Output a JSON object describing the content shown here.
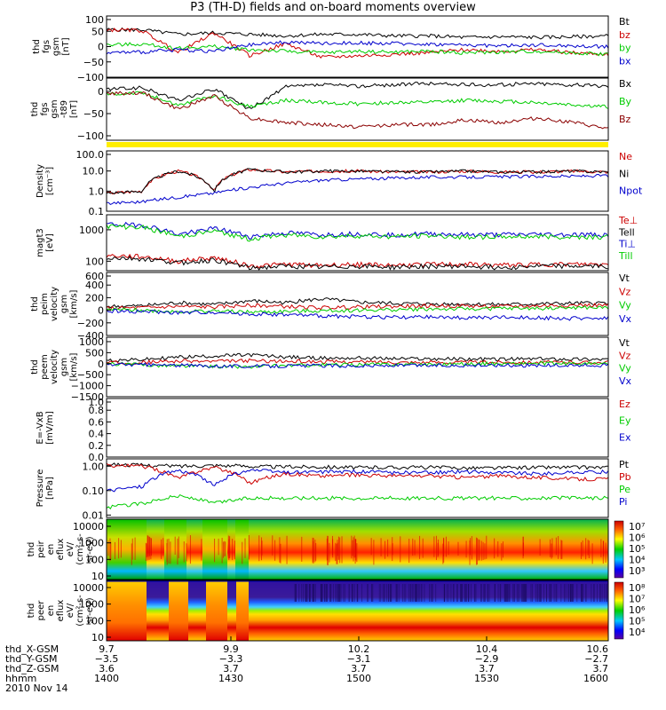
{
  "title": "P3 (TH-D) fields and on-board moments overview",
  "chart_data": [
    {
      "id": "p1",
      "type": "line",
      "ylabel": [
        "thd",
        "fgs",
        "gsm",
        "[nT]"
      ],
      "ticks": [
        "100",
        "50",
        "0",
        "−50",
        "−100"
      ],
      "ylim": [
        -100,
        100
      ],
      "series": [
        {
          "name": "Bt",
          "color": "#000000",
          "values": [
            55,
            55,
            40,
            45,
            40,
            35,
            40,
            40,
            35,
            35,
            30,
            32,
            30,
            32,
            35
          ]
        },
        {
          "name": "bz",
          "color": "#cc0000",
          "values": [
            55,
            52,
            -20,
            45,
            -30,
            10,
            -35,
            -30,
            -25,
            -20,
            -10,
            -15,
            -10,
            -20,
            -25
          ]
        },
        {
          "name": "by",
          "color": "#00cc00",
          "values": [
            5,
            8,
            -5,
            0,
            -10,
            -15,
            -20,
            -15,
            -18,
            -15,
            -20,
            -18,
            -15,
            -20,
            -25
          ]
        },
        {
          "name": "bx",
          "color": "#0000cc",
          "values": [
            -20,
            -18,
            -10,
            -15,
            5,
            15,
            10,
            12,
            10,
            8,
            5,
            3,
            5,
            2,
            0
          ]
        }
      ]
    },
    {
      "id": "p2",
      "type": "line",
      "ylabel": [
        "thd",
        "fgs",
        "gsm",
        "-t89",
        "[nT]"
      ],
      "ticks": [
        "0",
        "−50",
        "−100"
      ],
      "ylim": [
        -110,
        30
      ],
      "series": [
        {
          "name": "Bx",
          "color": "#000000",
          "values": [
            5,
            8,
            -20,
            5,
            -40,
            10,
            15,
            12,
            15,
            18,
            15,
            15,
            18,
            15,
            12
          ]
        },
        {
          "name": "By",
          "color": "#00cc00",
          "values": [
            -5,
            -3,
            -30,
            -10,
            -35,
            -20,
            -25,
            -28,
            -25,
            -25,
            -20,
            -22,
            -25,
            -30,
            -35
          ]
        },
        {
          "name": "Bz",
          "color": "#8b0000",
          "values": [
            -5,
            -3,
            -40,
            -10,
            -60,
            -70,
            -75,
            -80,
            -75,
            -75,
            -65,
            -70,
            -60,
            -70,
            -85
          ]
        }
      ]
    },
    {
      "id": "p3",
      "type": "line",
      "yscale": "log",
      "ylabel": [
        "Density",
        "[cm⁻³]"
      ],
      "ticks": [
        "100.0",
        "10.0",
        "1.0",
        "0.1"
      ],
      "ylim": [
        0.1,
        100
      ],
      "series": [
        {
          "name": "Ne",
          "color": "#cc0000",
          "values": [
            0.8,
            1.0,
            10,
            0.9,
            12,
            9,
            10,
            10,
            9,
            9,
            10,
            9,
            9,
            10,
            9
          ]
        },
        {
          "name": "Ni",
          "color": "#000000",
          "values": [
            0.8,
            1.0,
            10,
            0.9,
            12,
            9,
            10,
            10,
            9,
            9,
            10,
            9,
            9,
            10,
            9
          ]
        },
        {
          "name": "Npot",
          "color": "#0000cc",
          "values": [
            0.25,
            0.3,
            0.5,
            0.8,
            1.5,
            2.5,
            3.5,
            4,
            4.5,
            5,
            5,
            5.2,
            5.5,
            5.5,
            6
          ]
        }
      ]
    },
    {
      "id": "p4",
      "type": "line",
      "yscale": "log",
      "ylabel": [
        "magt3",
        "[eV]"
      ],
      "ticks": [
        "1000",
        "100"
      ],
      "ylim": [
        50,
        3000
      ],
      "series": [
        {
          "name": "Te⊥",
          "color": "#cc0000",
          "values": [
            150,
            140,
            100,
            130,
            70,
            80,
            75,
            80,
            75,
            80,
            80,
            75,
            80,
            80,
            80
          ]
        },
        {
          "name": "Tell",
          "color": "#000000",
          "values": [
            130,
            120,
            90,
            110,
            60,
            70,
            65,
            70,
            65,
            70,
            70,
            65,
            70,
            70,
            70
          ]
        },
        {
          "name": "Ti⊥",
          "color": "#0000cc",
          "values": [
            1500,
            1400,
            700,
            1100,
            600,
            800,
            700,
            750,
            700,
            750,
            700,
            700,
            720,
            700,
            700
          ]
        },
        {
          "name": "Till",
          "color": "#00cc00",
          "values": [
            1300,
            1200,
            600,
            900,
            500,
            700,
            600,
            650,
            600,
            650,
            600,
            600,
            620,
            600,
            600
          ]
        }
      ]
    },
    {
      "id": "p5",
      "type": "line",
      "ylabel": [
        "thd",
        "peim",
        "velocity",
        "gsm",
        "[km/s]"
      ],
      "ticks": [
        "600",
        "400",
        "200",
        "0",
        "−200",
        "−400"
      ],
      "ylim": [
        -400,
        600
      ],
      "series": [
        {
          "name": "Vt",
          "color": "#000000",
          "values": [
            60,
            70,
            120,
            90,
            150,
            120,
            180,
            130,
            110,
            100,
            100,
            90,
            100,
            110,
            120
          ]
        },
        {
          "name": "Vz",
          "color": "#cc0000",
          "values": [
            30,
            40,
            60,
            50,
            80,
            60,
            40,
            50,
            60,
            70,
            70,
            60,
            70,
            80,
            80
          ]
        },
        {
          "name": "Vy",
          "color": "#00cc00",
          "values": [
            10,
            0,
            -20,
            -10,
            -30,
            -20,
            -10,
            0,
            10,
            20,
            20,
            30,
            30,
            40,
            40
          ]
        },
        {
          "name": "Vx",
          "color": "#0000cc",
          "values": [
            -10,
            -20,
            -40,
            -30,
            -60,
            -70,
            -90,
            -100,
            -110,
            -110,
            -120,
            -110,
            -120,
            -130,
            -120
          ]
        }
      ]
    },
    {
      "id": "p6",
      "type": "line",
      "ylabel": [
        "thd",
        "peem",
        "velocity",
        "gsm",
        "[km/s]"
      ],
      "ticks": [
        "1000",
        "500",
        "0",
        "−500",
        "−1000",
        "−1500"
      ],
      "ylim": [
        -1500,
        1200
      ],
      "series": [
        {
          "name": "Vt",
          "color": "#000000",
          "values": [
            150,
            180,
            300,
            350,
            400,
            300,
            250,
            260,
            230,
            220,
            210,
            200,
            220,
            210,
            200
          ]
        },
        {
          "name": "Vz",
          "color": "#cc0000",
          "values": [
            50,
            60,
            120,
            100,
            140,
            100,
            90,
            80,
            70,
            60,
            60,
            70,
            60,
            60,
            60
          ]
        },
        {
          "name": "Vy",
          "color": "#00cc00",
          "values": [
            0,
            -50,
            -100,
            -120,
            -150,
            -80,
            -60,
            -40,
            -30,
            -20,
            -10,
            0,
            10,
            0,
            -10
          ]
        },
        {
          "name": "Vx",
          "color": "#0000cc",
          "values": [
            -30,
            -50,
            -80,
            -100,
            -120,
            -100,
            -90,
            -100,
            -90,
            -80,
            -80,
            -70,
            -80,
            -80,
            -70
          ]
        }
      ]
    },
    {
      "id": "p7",
      "type": "line",
      "ylabel": [
        "E=-VxB",
        "[mV/m]"
      ],
      "ticks": [
        "1.0",
        "0.8",
        "0.6",
        "0.4",
        "0.2",
        "0.0"
      ],
      "ylim": [
        0,
        1
      ],
      "series": [
        {
          "name": "Ez",
          "color": "#cc0000",
          "values": []
        },
        {
          "name": "Ey",
          "color": "#00cc00",
          "values": []
        },
        {
          "name": "Ex",
          "color": "#0000cc",
          "values": []
        }
      ]
    },
    {
      "id": "p8",
      "type": "line",
      "yscale": "log",
      "ylabel": [
        "Pressure",
        "[nPa]"
      ],
      "ticks": [
        "1.00",
        "0.10",
        "0.01"
      ],
      "ylim": [
        0.008,
        2
      ],
      "series": [
        {
          "name": "Pt",
          "color": "#000000",
          "values": [
            1.2,
            1.1,
            1.0,
            1.1,
            1.0,
            0.95,
            0.95,
            0.9,
            0.9,
            0.9,
            0.85,
            0.85,
            0.9,
            0.9,
            0.9
          ]
        },
        {
          "name": "Pb",
          "color": "#cc0000",
          "values": [
            1.1,
            1.0,
            0.3,
            0.9,
            0.2,
            0.5,
            0.4,
            0.45,
            0.4,
            0.4,
            0.35,
            0.4,
            0.35,
            0.3,
            0.3
          ]
        },
        {
          "name": "Pe",
          "color": "#00cc00",
          "values": [
            0.02,
            0.03,
            0.06,
            0.03,
            0.05,
            0.05,
            0.05,
            0.05,
            0.05,
            0.05,
            0.05,
            0.05,
            0.05,
            0.05,
            0.05
          ]
        },
        {
          "name": "Pi",
          "color": "#0000cc",
          "values": [
            0.1,
            0.15,
            0.7,
            0.15,
            0.7,
            0.55,
            0.6,
            0.6,
            0.55,
            0.55,
            0.6,
            0.55,
            0.5,
            0.55,
            0.6
          ]
        }
      ]
    },
    {
      "id": "s1",
      "type": "heatmap",
      "ylabel": [
        "thd",
        "peir",
        "en",
        "eflux",
        "eV/",
        "(cm²-s-",
        "sr-eV)"
      ],
      "ticks": [
        "10000",
        "1000",
        "100",
        "10"
      ],
      "colorbar_ticks": [
        "10⁷",
        "10⁶",
        "10⁵",
        "10⁴",
        "10³"
      ],
      "ylim": [
        5,
        20000
      ]
    },
    {
      "id": "s2",
      "type": "heatmap",
      "ylabel": [
        "thd",
        "peer",
        "en",
        "eflux",
        "eV/",
        "(cm²-s-",
        "sr-eV)"
      ],
      "ticks": [
        "10000",
        "1000",
        "100",
        "10"
      ],
      "colorbar_ticks": [
        "10⁸",
        "10⁷",
        "10⁶",
        "10⁵",
        "10⁴"
      ],
      "ylim": [
        5,
        30000
      ]
    }
  ],
  "footer": {
    "labels": [
      "thd_X-GSM",
      "thd_Y-GSM",
      "thd_Z-GSM",
      "hhmm",
      "2010 Nov 14"
    ],
    "columns": [
      [
        "9.7",
        "−3.5",
        "3.6",
        "1400"
      ],
      [
        "9.9",
        "−3.3",
        "3.7",
        "1430"
      ],
      [
        "10.2",
        "−3.1",
        "3.7",
        "1500"
      ],
      [
        "10.4",
        "−2.9",
        "3.7",
        "1530"
      ],
      [
        "10.6",
        "−2.7",
        "3.7",
        "1600"
      ]
    ]
  }
}
